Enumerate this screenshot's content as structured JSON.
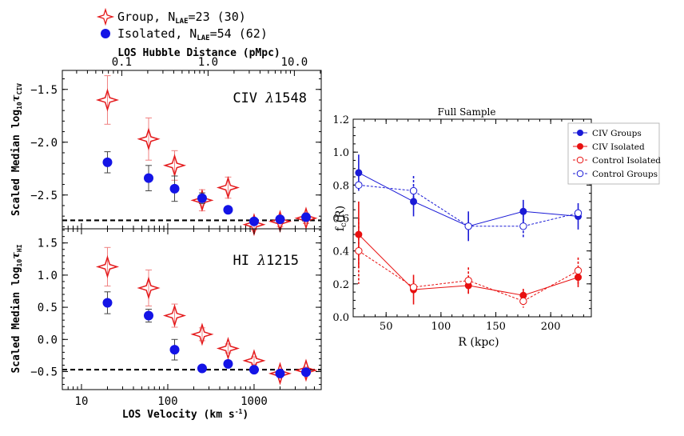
{
  "left_legend": {
    "group_label": "Group, N",
    "group_sub": "LAE",
    "group_count": "=23 (30)",
    "isolated_label": "Isolated, N",
    "isolated_sub": "LAE",
    "isolated_count": "=54 (62)"
  },
  "colors": {
    "group": "#e41a1c",
    "isolated": "#1414e6",
    "civ_groups": "#1a1ad6",
    "civ_isolated": "#e81010",
    "control_isolated": "#e81010",
    "control_groups": "#1a1ad6"
  },
  "chart_data": [
    {
      "type": "scatter",
      "name": "civ",
      "panel_label_pre": "CIV ",
      "panel_label_greek": "λ",
      "panel_label_post": "1548",
      "top_axis_title": "LOS Hubble Distance (pMpc)",
      "top_ticks": [
        {
          "value": 0.1,
          "label": "0.1"
        },
        {
          "value": 1.0,
          "label": "1.0"
        },
        {
          "value": 10.0,
          "label": "10.0"
        }
      ],
      "top_to_velocity_factor": 293.0,
      "ylabel_main": "Scaled Median log",
      "ylabel_sub1": "10",
      "ylabel_tau": "τ",
      "ylabel_sub2": "CIV",
      "x_scale": "log",
      "xlim": [
        6.0,
        6000.0
      ],
      "ylim": [
        -2.82,
        -1.32
      ],
      "yticks": [
        {
          "value": -1.5,
          "label": "−1.5"
        },
        {
          "value": -2.0,
          "label": "−2.0"
        },
        {
          "value": -2.5,
          "label": "−2.5"
        }
      ],
      "baseline": -2.74,
      "series": [
        {
          "name": "Group",
          "marker": "star",
          "x": [
            20,
            60,
            120,
            250,
            500,
            1000,
            2000,
            4000
          ],
          "y": [
            -1.6,
            -1.97,
            -2.22,
            -2.55,
            -2.43,
            -2.78,
            -2.75,
            -2.72
          ],
          "yerr": [
            0.23,
            0.2,
            0.14,
            0.1,
            0.1,
            0.05,
            0.05,
            0.05
          ]
        },
        {
          "name": "Isolated",
          "marker": "circle",
          "x": [
            20,
            60,
            120,
            250,
            500,
            1000,
            2000,
            4000
          ],
          "y": [
            -2.19,
            -2.34,
            -2.44,
            -2.53,
            -2.64,
            -2.75,
            -2.73,
            -2.71
          ],
          "yerr": [
            0.1,
            0.12,
            0.12,
            0.05,
            0.03,
            0.03,
            0.03,
            0.03
          ]
        }
      ]
    },
    {
      "type": "scatter",
      "name": "hi",
      "panel_label_pre": "HI ",
      "panel_label_greek": "λ",
      "panel_label_post": "1215",
      "xlabel_main": "LOS Velocity (km s",
      "xlabel_sup": "-1",
      "xlabel_end": ")",
      "ylabel_main": "Scaled Median log",
      "ylabel_sub1": "10",
      "ylabel_tau": "τ",
      "ylabel_sub2": "HI",
      "x_scale": "log",
      "xlim": [
        6.0,
        6000.0
      ],
      "xticks": [
        {
          "value": 10,
          "label": "10"
        },
        {
          "value": 100,
          "label": "100"
        },
        {
          "value": 1000,
          "label": "1000"
        }
      ],
      "ylim": [
        -0.78,
        1.72
      ],
      "yticks": [
        {
          "value": 1.5,
          "label": "1.5"
        },
        {
          "value": 1.0,
          "label": "1.0"
        },
        {
          "value": 0.5,
          "label": "0.5"
        },
        {
          "value": 0.0,
          "label": "0.0"
        },
        {
          "value": -0.5,
          "label": "−0.5"
        }
      ],
      "baseline": -0.47,
      "series": [
        {
          "name": "Group",
          "marker": "star",
          "x": [
            20,
            60,
            120,
            250,
            500,
            1000,
            2000,
            4000
          ],
          "y": [
            1.13,
            0.8,
            0.37,
            0.08,
            -0.14,
            -0.33,
            -0.53,
            -0.48
          ],
          "yerr": [
            0.3,
            0.28,
            0.18,
            0.1,
            0.07,
            0.06,
            0.05,
            0.05
          ]
        },
        {
          "name": "Isolated",
          "marker": "circle",
          "x": [
            20,
            60,
            120,
            250,
            500,
            1000,
            2000,
            4000
          ],
          "y": [
            0.57,
            0.37,
            -0.16,
            -0.45,
            -0.38,
            -0.47,
            -0.53,
            -0.51
          ],
          "yerr": [
            0.17,
            0.1,
            0.16,
            0.04,
            0.05,
            0.04,
            0.04,
            0.04
          ]
        }
      ]
    },
    {
      "type": "line",
      "name": "fc",
      "title": "Full Sample",
      "xlabel": "R (kpc)",
      "ylabel_main": "f",
      "ylabel_sub": "c",
      "ylabel_end": "(R)",
      "xlim": [
        20,
        237
      ],
      "ylim": [
        0.0,
        1.2
      ],
      "xticks": [
        {
          "value": 50,
          "label": "50"
        },
        {
          "value": 100,
          "label": "100"
        },
        {
          "value": 150,
          "label": "150"
        },
        {
          "value": 200,
          "label": "200"
        }
      ],
      "yticks": [
        {
          "value": 0.0,
          "label": "0.0"
        },
        {
          "value": 0.2,
          "label": "0.2"
        },
        {
          "value": 0.4,
          "label": "0.4"
        },
        {
          "value": 0.6,
          "label": "0.6"
        },
        {
          "value": 0.8,
          "label": "0.8"
        },
        {
          "value": 1.0,
          "label": "1.0"
        },
        {
          "value": 1.2,
          "label": "1.2"
        }
      ],
      "legend_position": "top-right",
      "series": [
        {
          "name": "CIV Groups",
          "style": "solid-filled",
          "color_key": "civ_groups",
          "x": [
            25,
            75,
            125,
            175,
            225
          ],
          "y": [
            0.875,
            0.7,
            0.55,
            0.64,
            0.61
          ],
          "yerr": [
            0.11,
            0.09,
            0.09,
            0.07,
            0.08
          ]
        },
        {
          "name": "CIV Isolated",
          "style": "solid-filled",
          "color_key": "civ_isolated",
          "x": [
            25,
            75,
            125,
            175,
            225
          ],
          "y": [
            0.5,
            0.165,
            0.19,
            0.13,
            0.24
          ],
          "yerr": [
            0.2,
            0.09,
            0.05,
            0.04,
            0.06
          ]
        },
        {
          "name": "Control Isolated",
          "style": "dashed-open",
          "color_key": "control_isolated",
          "x": [
            25,
            75,
            125,
            175,
            225
          ],
          "y": [
            0.4,
            0.18,
            0.22,
            0.095,
            0.28
          ],
          "yerr": [
            0.2,
            0.04,
            0.08,
            0.04,
            0.08
          ]
        },
        {
          "name": "Control Groups",
          "style": "dashed-open",
          "color_key": "control_groups",
          "x": [
            25,
            75,
            125,
            175,
            225
          ],
          "y": [
            0.8,
            0.765,
            0.55,
            0.55,
            0.63
          ],
          "yerr": [
            0.02,
            0.09,
            0.01,
            0.07,
            0.02
          ]
        }
      ]
    }
  ]
}
